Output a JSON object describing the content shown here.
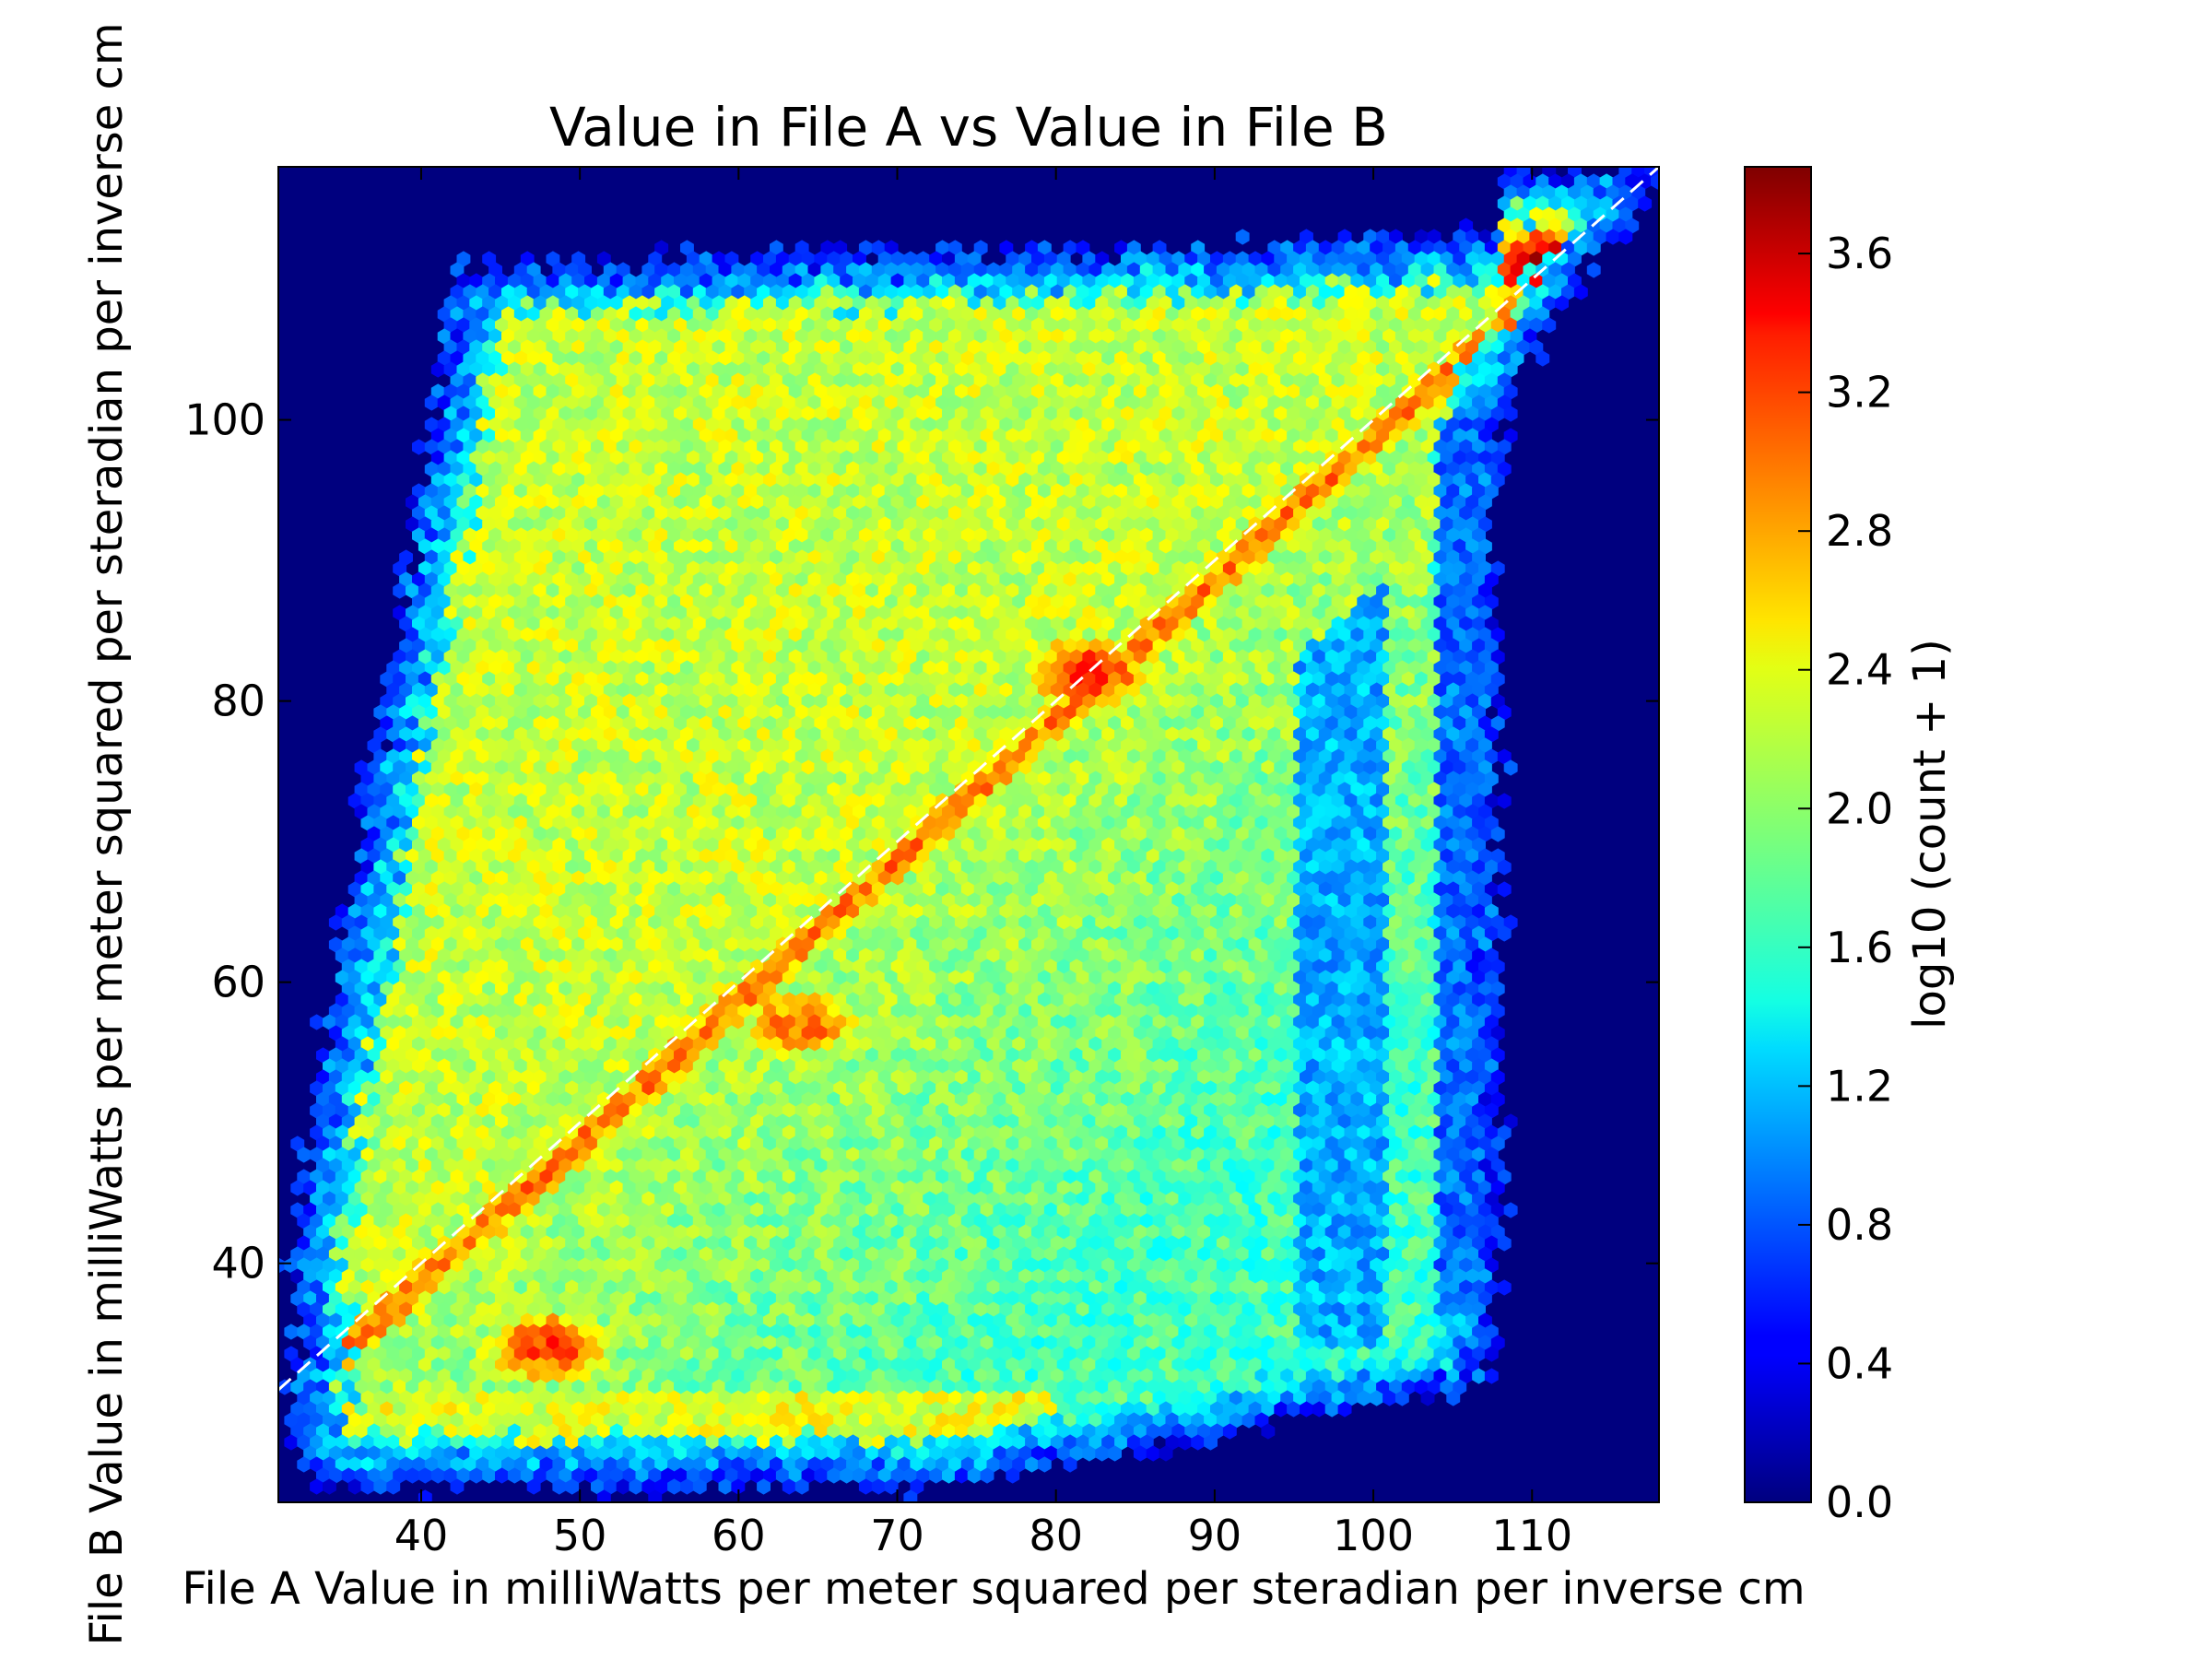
{
  "chart_data": {
    "type": "heatmap",
    "plot_kind": "hexbin",
    "title": "Value in File A vs Value in File B",
    "xlabel": "File A Value in milliWatts per meter squared per steradian per inverse cm",
    "ylabel": "File B Value in milliWatts per meter squared per steradian per inverse cm",
    "xlim": [
      31,
      118
    ],
    "ylim": [
      23,
      118
    ],
    "x_ticks": [
      40,
      50,
      60,
      70,
      80,
      90,
      100,
      110
    ],
    "y_ticks": [
      40,
      60,
      80,
      100
    ],
    "x_tick_labels": [
      "40",
      "50",
      "60",
      "70",
      "80",
      "90",
      "100",
      "110"
    ],
    "y_tick_labels": [
      "40",
      "60",
      "80",
      "100"
    ],
    "colormap": "jet",
    "background_color": "#00007f",
    "colorbar": {
      "label": "log10 (count + 1)",
      "range": [
        0,
        3.85
      ],
      "ticks": [
        0.0,
        0.4,
        0.8,
        1.2,
        1.6,
        2.0,
        2.4,
        2.8,
        3.2,
        3.6
      ],
      "tick_labels": [
        "0.0",
        "0.4",
        "0.8",
        "1.2",
        "1.6",
        "2.0",
        "2.4",
        "2.8",
        "3.2",
        "3.6"
      ]
    },
    "reference_line": {
      "style": "dashed",
      "color": "#ffffff",
      "slope": 1,
      "intercept": 0
    },
    "density_summary": {
      "hot_spots": [
        {
          "x": 48,
          "y": 34,
          "value": 3.2
        },
        {
          "x": 64,
          "y": 57,
          "value": 3.0
        },
        {
          "x": 82,
          "y": 82,
          "value": 3.3
        },
        {
          "x": 111,
          "y": 111,
          "value": 3.75
        }
      ],
      "diagonal_ridge_value": 2.9,
      "upper_left_region_value": 2.2,
      "lower_right_region_value": 1.7,
      "low_count_column_x": [
        95,
        101
      ]
    },
    "grid": false,
    "legend": "none"
  }
}
